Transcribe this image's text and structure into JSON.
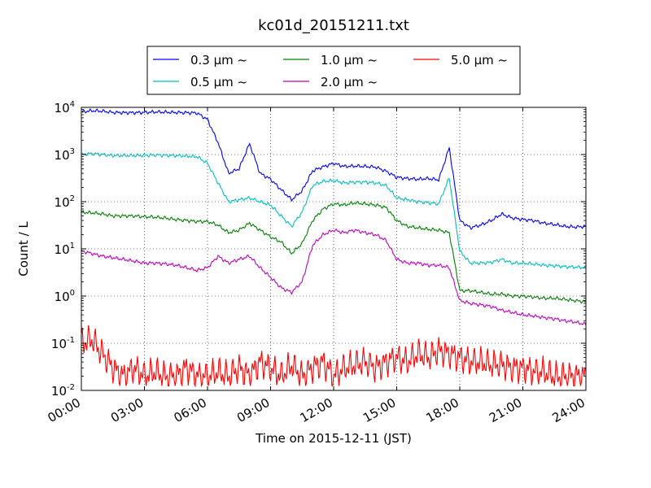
{
  "chart_data": {
    "type": "line",
    "title": "kc01d_20151211.txt",
    "xlabel": "Time on 2015-12-11 (JST)",
    "ylabel": "Count / L",
    "yscale": "log",
    "ylim": [
      0.01,
      10000
    ],
    "xlim": [
      "00:00",
      "24:00"
    ],
    "x_ticks": [
      "00:00",
      "03:00",
      "06:00",
      "09:00",
      "12:00",
      "15:00",
      "18:00",
      "21:00",
      "24:00"
    ],
    "y_ticks": [
      {
        "base": "10",
        "exp": "-2"
      },
      {
        "base": "10",
        "exp": "-1"
      },
      {
        "base": "10",
        "exp": "0"
      },
      {
        "base": "10",
        "exp": "1"
      },
      {
        "base": "10",
        "exp": "2"
      },
      {
        "base": "10",
        "exp": "3"
      },
      {
        "base": "10",
        "exp": "4"
      }
    ],
    "grid": true,
    "legend_position": "top-center",
    "x": [
      "00:00",
      "00:30",
      "01:00",
      "01:30",
      "02:00",
      "02:30",
      "03:00",
      "03:30",
      "04:00",
      "04:30",
      "05:00",
      "05:30",
      "06:00",
      "06:30",
      "07:00",
      "07:30",
      "08:00",
      "08:30",
      "09:00",
      "09:30",
      "10:00",
      "10:30",
      "11:00",
      "11:30",
      "12:00",
      "12:30",
      "13:00",
      "13:30",
      "14:00",
      "14:30",
      "15:00",
      "15:30",
      "16:00",
      "16:30",
      "17:00",
      "17:30",
      "18:00",
      "18:30",
      "19:00",
      "19:30",
      "20:00",
      "20:30",
      "21:00",
      "21:30",
      "22:00",
      "22:30",
      "23:00",
      "23:30",
      "24:00"
    ],
    "series": [
      {
        "name": "0.3 μm ~",
        "color": "#0000ff",
        "values": [
          8000,
          8500,
          8300,
          7800,
          7700,
          7700,
          7800,
          8000,
          7900,
          7800,
          7700,
          7600,
          5500,
          1800,
          400,
          500,
          1700,
          400,
          300,
          180,
          110,
          170,
          450,
          550,
          650,
          560,
          570,
          560,
          540,
          440,
          330,
          310,
          300,
          310,
          290,
          1400,
          40,
          28,
          32,
          40,
          55,
          45,
          42,
          40,
          35,
          33,
          30,
          29,
          30
        ]
      },
      {
        "name": "0.5 μm ~",
        "color": "#00bfbf",
        "values": [
          1000,
          1050,
          1000,
          950,
          950,
          950,
          960,
          980,
          960,
          950,
          930,
          900,
          650,
          250,
          100,
          110,
          120,
          100,
          85,
          50,
          30,
          60,
          220,
          270,
          280,
          250,
          260,
          260,
          250,
          220,
          120,
          110,
          100,
          95,
          90,
          320,
          9,
          5,
          5,
          5.2,
          6,
          5,
          5,
          4.8,
          4.5,
          4.4,
          4.2,
          4.1,
          4
        ]
      },
      {
        "name": "1.0 μm ~",
        "color": "#008000",
        "values": [
          60,
          58,
          55,
          50,
          50,
          50,
          48,
          47,
          45,
          42,
          40,
          38,
          38,
          32,
          22,
          25,
          35,
          25,
          18,
          14,
          8,
          13,
          40,
          70,
          90,
          85,
          95,
          90,
          85,
          75,
          40,
          30,
          28,
          26,
          25,
          22,
          1.3,
          1.3,
          1.2,
          1.1,
          1.1,
          1,
          1,
          0.95,
          0.9,
          0.9,
          0.85,
          0.8,
          0.75
        ]
      },
      {
        "name": "2.0 μm ~",
        "color": "#bf00bf",
        "values": [
          9,
          8,
          7,
          6.5,
          6,
          5.5,
          5,
          5,
          4.8,
          4.5,
          4,
          3.5,
          4,
          7,
          5,
          6,
          7,
          4,
          2.5,
          1.5,
          1.2,
          2,
          12,
          20,
          25,
          22,
          25,
          22,
          20,
          15,
          6,
          5,
          5,
          4.5,
          4.5,
          4,
          0.8,
          0.7,
          0.65,
          0.6,
          0.5,
          0.45,
          0.4,
          0.38,
          0.35,
          0.33,
          0.3,
          0.28,
          0.25
        ]
      },
      {
        "name": "5.0 μm ~",
        "color": "#ff0000",
        "values": [
          0.1,
          0.12,
          0.06,
          0.03,
          0.02,
          0.03,
          0.02,
          0.025,
          0.02,
          0.02,
          0.03,
          0.02,
          0.02,
          0.025,
          0.02,
          0.03,
          0.02,
          0.04,
          0.03,
          0.02,
          0.035,
          0.02,
          0.03,
          0.04,
          0.02,
          0.03,
          0.035,
          0.04,
          0.03,
          0.04,
          0.05,
          0.04,
          0.06,
          0.05,
          0.07,
          0.06,
          0.05,
          0.04,
          0.04,
          0.035,
          0.035,
          0.03,
          0.03,
          0.025,
          0.025,
          0.02,
          0.02,
          0.02,
          0.02
        ]
      }
    ]
  }
}
